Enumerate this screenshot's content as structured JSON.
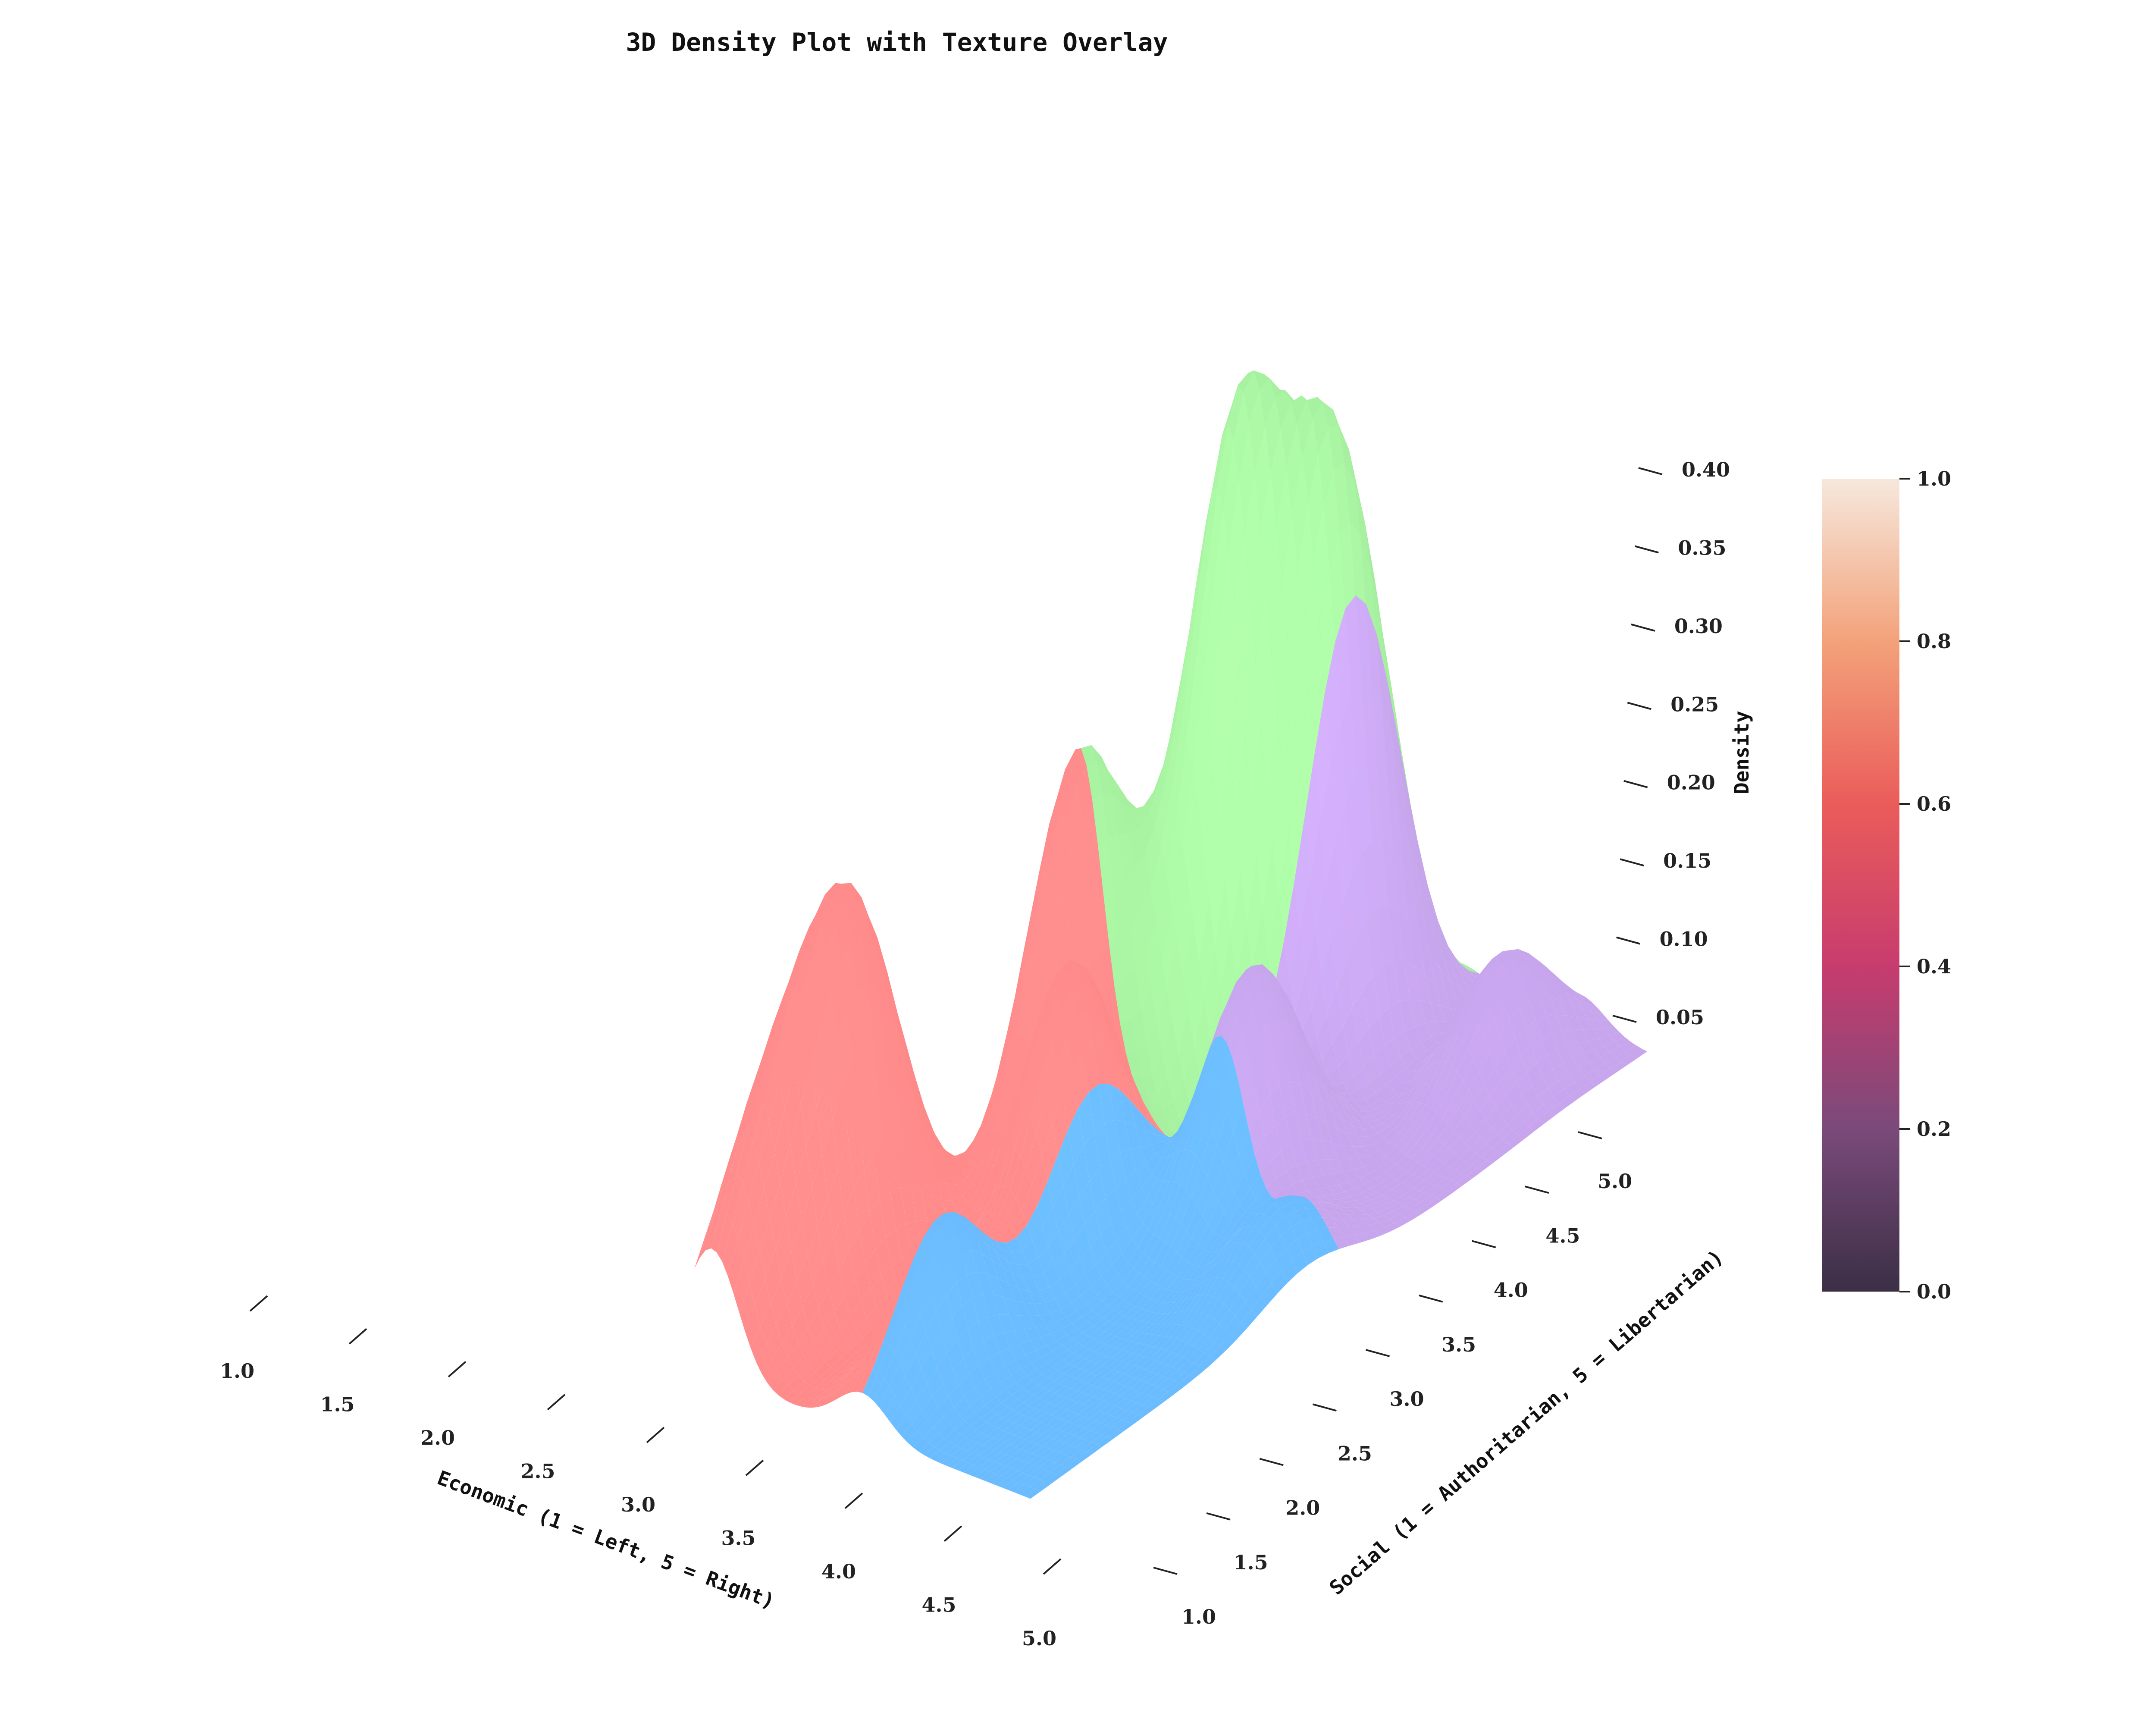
{
  "chart_data": {
    "type": "surface3d",
    "title": "3D Density Plot with Texture Overlay",
    "xlabel": "Economic (1 = Left, 5 = Right)",
    "ylabel": "Social (1 = Authoritarian, 5 = Libertarian)",
    "zlabel": "Density",
    "xlim": [
      1.0,
      5.0
    ],
    "ylim": [
      1.0,
      5.0
    ],
    "zlim": [
      0.0,
      0.4
    ],
    "x_ticks": [
      "1.0",
      "1.5",
      "2.0",
      "2.5",
      "3.0",
      "3.5",
      "4.0",
      "4.5",
      "5.0"
    ],
    "y_ticks": [
      "1.0",
      "1.5",
      "2.0",
      "2.5",
      "3.0",
      "3.5",
      "4.0",
      "4.5",
      "5.0"
    ],
    "z_ticks": [
      "0.05",
      "0.10",
      "0.15",
      "0.20",
      "0.25",
      "0.30",
      "0.35",
      "0.40"
    ],
    "quadrant_colors": {
      "left_authoritarian": "#ff8a8a",
      "right_authoritarian": "#6bbcff",
      "left_libertarian": "#a6f0a0",
      "right_libertarian": "#c8a6ee"
    },
    "colorbar": {
      "ticks": [
        "0.0",
        "0.2",
        "0.4",
        "0.6",
        "0.8",
        "1.0"
      ],
      "range": [
        0.0,
        1.0
      ],
      "colors": [
        "#3b2f45",
        "#7a4a7a",
        "#c73c6e",
        "#ea5c5a",
        "#f3a27a",
        "#f6e8dd"
      ]
    },
    "peaks": [
      {
        "economic": 2.3,
        "social": 3.8,
        "density": 0.4
      },
      {
        "economic": 2.8,
        "social": 4.2,
        "density": 0.36
      },
      {
        "economic": 1.9,
        "social": 3.0,
        "density": 0.26
      },
      {
        "economic": 1.4,
        "social": 1.8,
        "density": 0.23
      },
      {
        "economic": 2.7,
        "social": 2.5,
        "density": 0.18
      },
      {
        "economic": 3.6,
        "social": 3.2,
        "density": 0.15
      },
      {
        "economic": 1.2,
        "social": 1.3,
        "density": 0.12
      },
      {
        "economic": 3.0,
        "social": 1.5,
        "density": 0.1
      },
      {
        "economic": 4.2,
        "social": 4.5,
        "density": 0.08
      },
      {
        "economic": 4.6,
        "social": 2.8,
        "density": 0.05
      }
    ]
  }
}
